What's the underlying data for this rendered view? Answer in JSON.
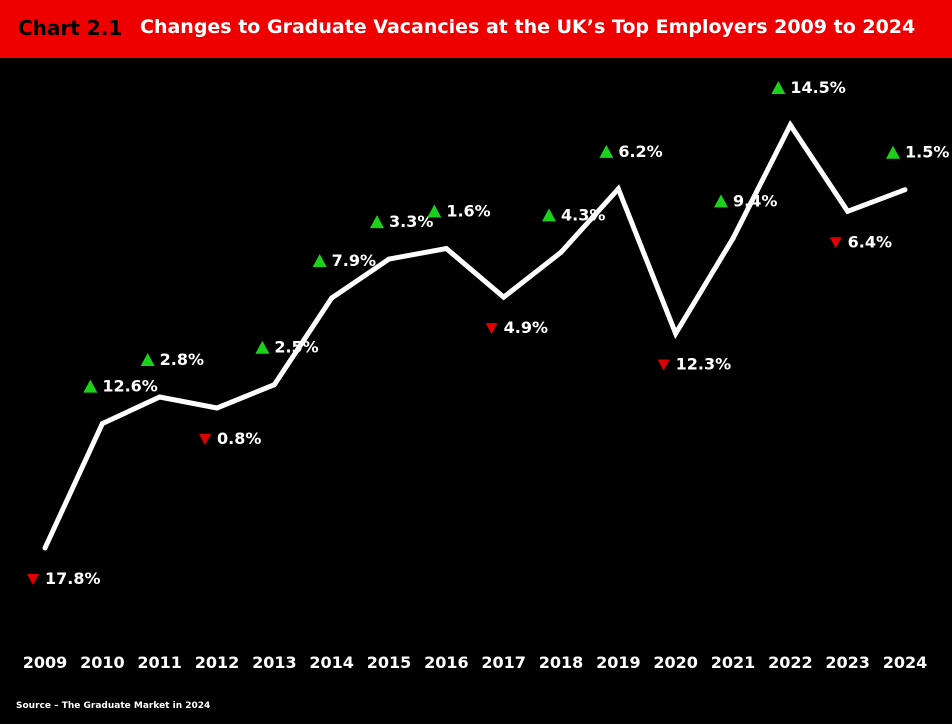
{
  "header": {
    "chart_label": "Chart 2.1",
    "title": "Changes to Graduate Vacancies at the UK’s Top Employers 2009 to 2024",
    "background": "#ee0000"
  },
  "source": "Source – The Graduate Market in 2024",
  "colors": {
    "up": "#1bd11b",
    "down": "#e00000",
    "line": "#ffffff",
    "background": "#000000"
  },
  "chart_data": {
    "type": "line",
    "title": "Changes to Graduate Vacancies at the UK’s Top Employers 2009 to 2024",
    "xlabel": "",
    "ylabel": "",
    "categories": [
      "2009",
      "2010",
      "2011",
      "2012",
      "2013",
      "2014",
      "2015",
      "2016",
      "2017",
      "2018",
      "2019",
      "2020",
      "2021",
      "2022",
      "2023",
      "2024"
    ],
    "relative_level": [
      0.0,
      0.294,
      0.357,
      0.331,
      0.386,
      0.591,
      0.683,
      0.708,
      0.593,
      0.699,
      0.849,
      0.507,
      0.732,
      1.0,
      0.796,
      0.847
    ],
    "changes": [
      {
        "year": "2009",
        "direction": "down",
        "label": "17.8%"
      },
      {
        "year": "2010",
        "direction": "up",
        "label": "12.6%"
      },
      {
        "year": "2011",
        "direction": "up",
        "label": "2.8%"
      },
      {
        "year": "2012",
        "direction": "down",
        "label": "0.8%"
      },
      {
        "year": "2013",
        "direction": "up",
        "label": "2.5%"
      },
      {
        "year": "2014",
        "direction": "up",
        "label": "7.9%"
      },
      {
        "year": "2015",
        "direction": "up",
        "label": "3.3%"
      },
      {
        "year": "2016",
        "direction": "up",
        "label": "1.6%"
      },
      {
        "year": "2017",
        "direction": "down",
        "label": "4.9%"
      },
      {
        "year": "2018",
        "direction": "up",
        "label": "4.3%"
      },
      {
        "year": "2019",
        "direction": "up",
        "label": "6.2%"
      },
      {
        "year": "2020",
        "direction": "down",
        "label": "12.3%"
      },
      {
        "year": "2021",
        "direction": "up",
        "label": "9.4%"
      },
      {
        "year": "2022",
        "direction": "up",
        "label": "14.5%"
      },
      {
        "year": "2023",
        "direction": "down",
        "label": "6.4%"
      },
      {
        "year": "2024",
        "direction": "up",
        "label": "1.5%"
      }
    ],
    "grid": false,
    "legend": "none"
  }
}
